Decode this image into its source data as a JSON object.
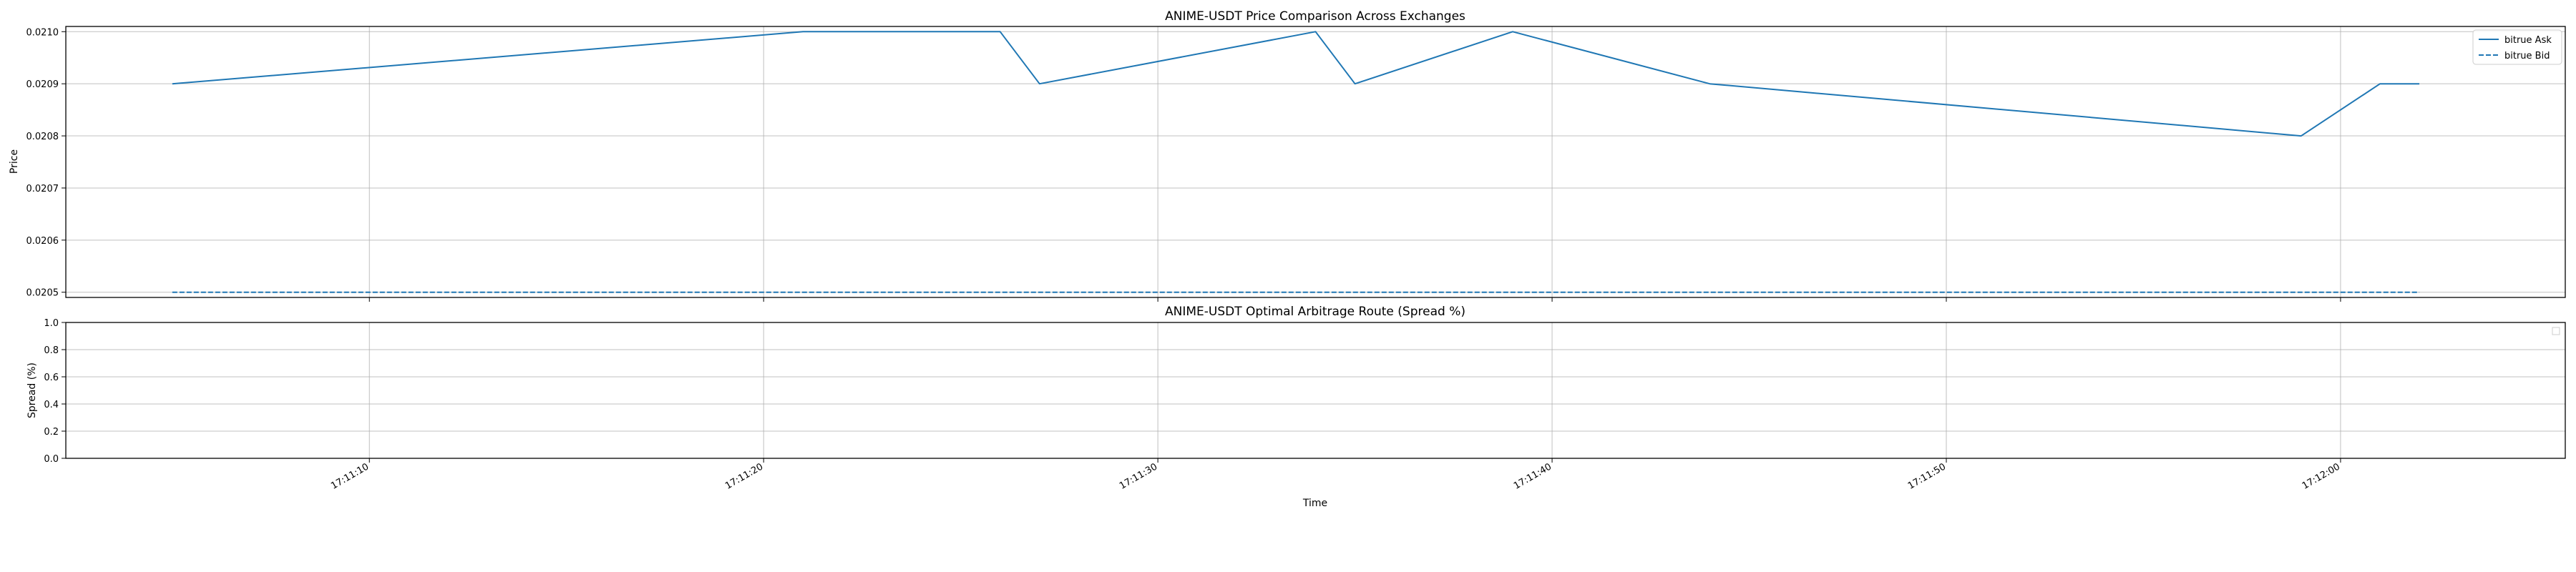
{
  "chart_data": [
    {
      "type": "line",
      "title": "ANIME-USDT Price Comparison Across Exchanges",
      "xlabel": "",
      "ylabel": "Price",
      "xlim": [
        "17:11:02.3",
        "17:12:05.7"
      ],
      "ylim": [
        0.02049,
        0.02101
      ],
      "yticks": [
        "0.0205",
        "0.0206",
        "0.0207",
        "0.0208",
        "0.0209",
        "0.0210"
      ],
      "grid": true,
      "legend_position": "top-right",
      "series": [
        {
          "name": "bitrue Ask",
          "style": "solid",
          "color": "#1f77b4",
          "x": [
            "17:11:05",
            "17:11:21",
            "17:11:26",
            "17:11:27",
            "17:11:34",
            "17:11:35",
            "17:11:39",
            "17:11:44",
            "17:11:59",
            "17:12:01",
            "17:12:02"
          ],
          "y": [
            0.0209,
            0.021,
            0.021,
            0.0209,
            0.021,
            0.0209,
            0.021,
            0.0209,
            0.0208,
            0.0209,
            0.0209
          ]
        },
        {
          "name": "bitrue Bid",
          "style": "dashed",
          "color": "#1f77b4",
          "x": [
            "17:11:05",
            "17:11:21",
            "17:11:26",
            "17:11:27",
            "17:11:34",
            "17:11:35",
            "17:11:39",
            "17:11:44",
            "17:11:59",
            "17:12:01",
            "17:12:02"
          ],
          "y": [
            0.0205,
            0.0205,
            0.0205,
            0.0205,
            0.0205,
            0.0205,
            0.0205,
            0.0205,
            0.0205,
            0.0205,
            0.0205
          ]
        }
      ]
    },
    {
      "type": "line",
      "title": "ANIME-USDT Optimal Arbitrage Route (Spread %)",
      "xlabel": "Time",
      "ylabel": "Spread (%)",
      "xlim": [
        "17:11:02.3",
        "17:12:05.7"
      ],
      "ylim": [
        0.0,
        1.0
      ],
      "yticks": [
        "0.0",
        "0.2",
        "0.4",
        "0.6",
        "0.8",
        "1.0"
      ],
      "xticks": [
        "17:11:10",
        "17:11:20",
        "17:11:30",
        "17:11:40",
        "17:11:50",
        "17:12:00"
      ],
      "grid": true,
      "legend_position": "top-right",
      "series": []
    }
  ]
}
